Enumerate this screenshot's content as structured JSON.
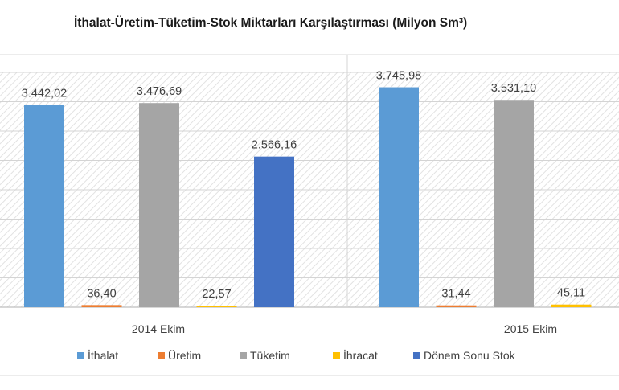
{
  "chart_data": {
    "type": "bar",
    "title": "İthalat-Üretim-Tüketim-Stok Miktarları Karşılaştırması (Milyon Sm³)",
    "categories": [
      "2014 Ekim",
      "2015 Ekim"
    ],
    "series": [
      {
        "name": "İthalat",
        "color": "#5B9BD5",
        "values": [
          3442.02,
          3745.98
        ],
        "labels": [
          "3.442,02",
          "3.745,98"
        ]
      },
      {
        "name": "Üretim",
        "color": "#ED7D31",
        "values": [
          36.4,
          31.44
        ],
        "labels": [
          "36,40",
          "31,44"
        ]
      },
      {
        "name": "Tüketim",
        "color": "#A5A5A5",
        "values": [
          3476.69,
          3531.1
        ],
        "labels": [
          "3.476,69",
          "3.531,10"
        ]
      },
      {
        "name": "İhracat",
        "color": "#FFC000",
        "values": [
          22.57,
          45.11
        ],
        "labels": [
          "22,57",
          "45,11"
        ]
      },
      {
        "name": "Dönem Sonu Stok",
        "color": "#4472C4",
        "values": [
          2566.16,
          null
        ],
        "labels": [
          "2.566,16",
          ""
        ]
      }
    ],
    "ylim": [
      0,
      4000
    ],
    "grid": true,
    "legend_position": "bottom"
  }
}
